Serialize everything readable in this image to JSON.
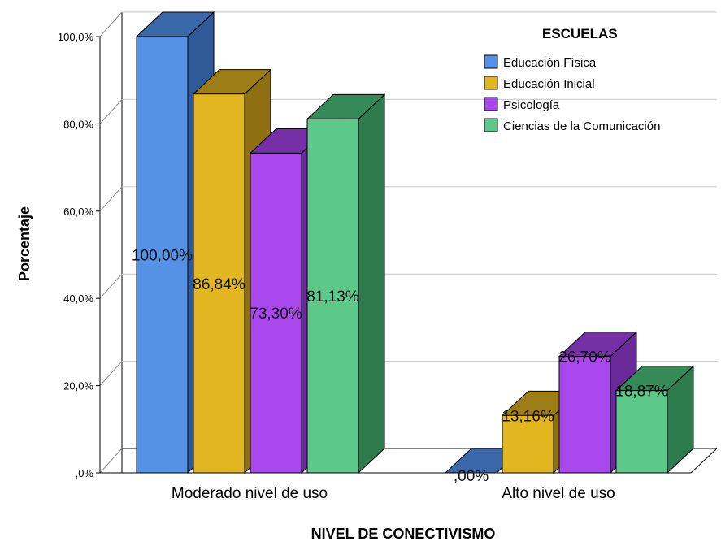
{
  "chart_data": {
    "type": "bar",
    "title": "",
    "xlabel": "NIVEL DE CONECTIVISMO",
    "ylabel": "Porcentaje",
    "ylim": [
      0,
      100
    ],
    "y_ticks": [
      ",0%",
      "20,0%",
      "40,0%",
      "60,0%",
      "80,0%",
      "100,0%"
    ],
    "grid": true,
    "legend_position": "top-right",
    "legend_title": "ESCUELAS",
    "categories": [
      "Moderado nivel de uso",
      "Alto nivel de uso"
    ],
    "series": [
      {
        "name": "Educación Física",
        "values": [
          100.0,
          0.0
        ],
        "labels": [
          "100,00%",
          ",00%"
        ],
        "color": "#5592e6",
        "side_color": "#2f5a97",
        "top_color": "#3a68a8"
      },
      {
        "name": "Educación Inicial",
        "values": [
          86.84,
          13.16
        ],
        "labels": [
          "86,84%",
          "13,16%"
        ],
        "color": "#e2b620",
        "side_color": "#8e7012",
        "top_color": "#9c7d16"
      },
      {
        "name": "Psicología",
        "values": [
          73.3,
          26.7
        ],
        "labels": [
          "73,30%",
          "26,70%"
        ],
        "color": "#a948ec",
        "side_color": "#6a2a9a",
        "top_color": "#7530a8"
      },
      {
        "name": "Ciencias de la Comunicación",
        "values": [
          81.13,
          18.87
        ],
        "labels": [
          "81,13%",
          "18,87%"
        ],
        "color": "#5cc98a",
        "side_color": "#2e7b4d",
        "top_color": "#358a58"
      }
    ]
  }
}
